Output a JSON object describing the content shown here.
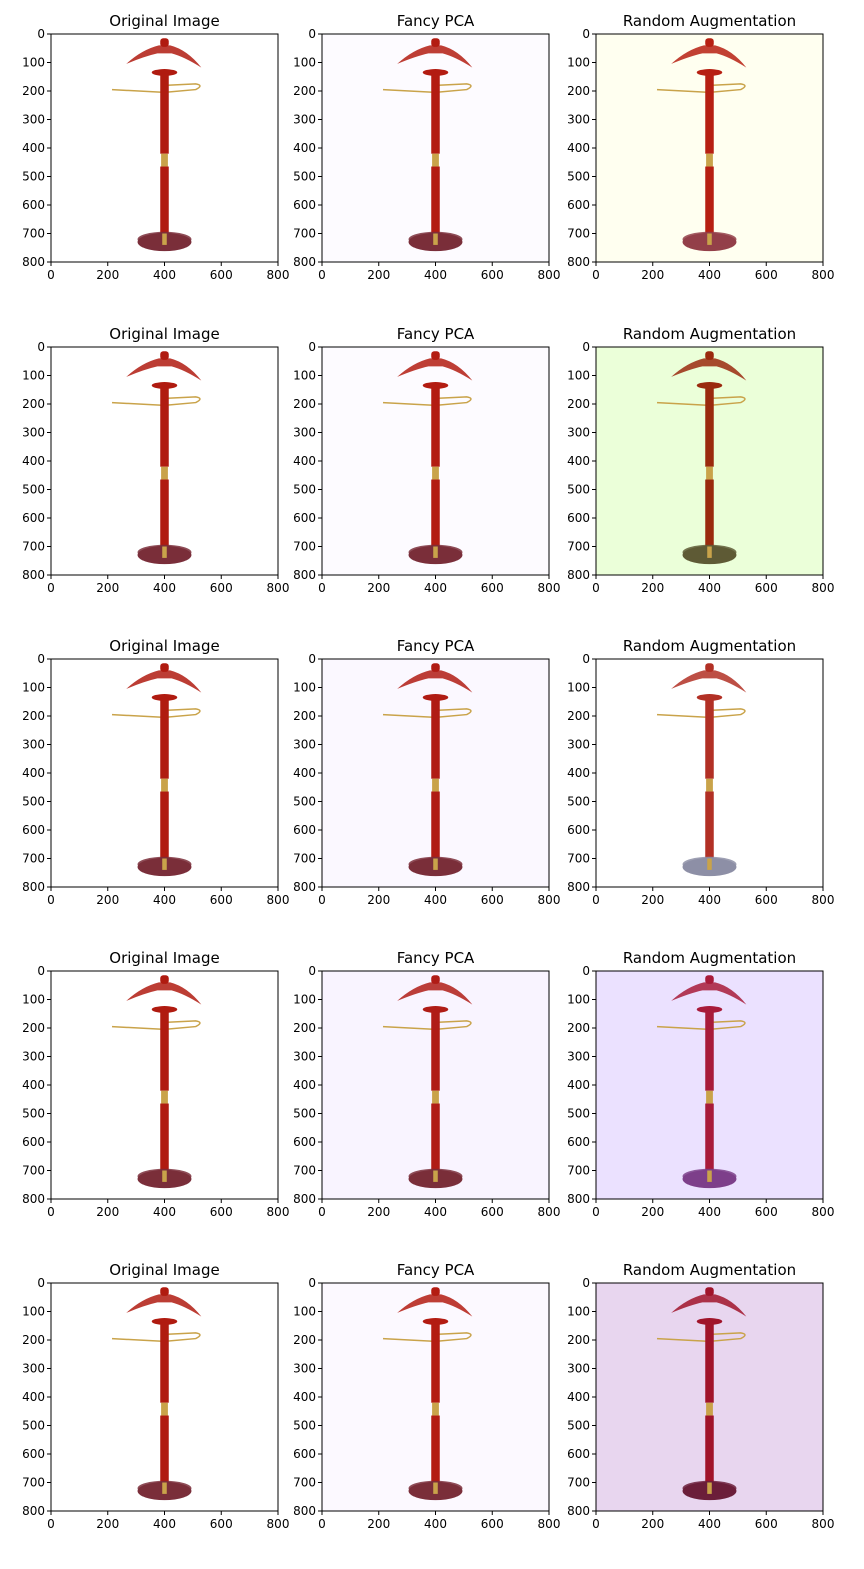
{
  "figure": {
    "ticks": [
      "0",
      "200",
      "400",
      "600",
      "800"
    ],
    "y_ticks": [
      "0",
      "100",
      "200",
      "300",
      "400",
      "500",
      "600",
      "700",
      "800"
    ],
    "rows": [
      {
        "panels": [
          {
            "title": "Original Image",
            "bg": "#ffffff",
            "tint": "#b01b10",
            "base": "#7a2e3a"
          },
          {
            "title": "Fancy PCA",
            "bg": "#fdfbff",
            "tint": "#b31c12",
            "base": "#7a2e3a"
          },
          {
            "title": "Random Augmentation",
            "bg": "#fffff0",
            "tint": "#b72012",
            "base": "#934049"
          }
        ]
      },
      {
        "panels": [
          {
            "title": "Original Image",
            "bg": "#ffffff",
            "tint": "#b01b10",
            "base": "#7a2e3a"
          },
          {
            "title": "Fancy PCA",
            "bg": "#fdfbff",
            "tint": "#b31c12",
            "base": "#7a2e3a"
          },
          {
            "title": "Random Augmentation",
            "bg": "#ebffd9",
            "tint": "#9a2a0e",
            "base": "#5e5a35"
          }
        ]
      },
      {
        "panels": [
          {
            "title": "Original Image",
            "bg": "#ffffff",
            "tint": "#b01b10",
            "base": "#7a2e3a"
          },
          {
            "title": "Fancy PCA",
            "bg": "#fbf8ff",
            "tint": "#b01c14",
            "base": "#7a2e3a"
          },
          {
            "title": "Random Augmentation",
            "bg": "#ffffff",
            "tint": "#b23025",
            "base": "#8d8fa6"
          }
        ]
      },
      {
        "panels": [
          {
            "title": "Original Image",
            "bg": "#ffffff",
            "tint": "#b01b10",
            "base": "#7a2e3a"
          },
          {
            "title": "Fancy PCA",
            "bg": "#f9f4ff",
            "tint": "#b01c16",
            "base": "#7a2e3a"
          },
          {
            "title": "Random Augmentation",
            "bg": "#ebe1ff",
            "tint": "#a81b3a",
            "base": "#7d3f8a"
          }
        ]
      },
      {
        "panels": [
          {
            "title": "Original Image",
            "bg": "#ffffff",
            "tint": "#b01b10",
            "base": "#7a2e3a"
          },
          {
            "title": "Fancy PCA",
            "bg": "#fcf9ff",
            "tint": "#b31c12",
            "base": "#7a2e3a"
          },
          {
            "title": "Random Augmentation",
            "bg": "#e8d6ef",
            "tint": "#a0142a",
            "base": "#6b1f3a"
          }
        ]
      }
    ]
  }
}
